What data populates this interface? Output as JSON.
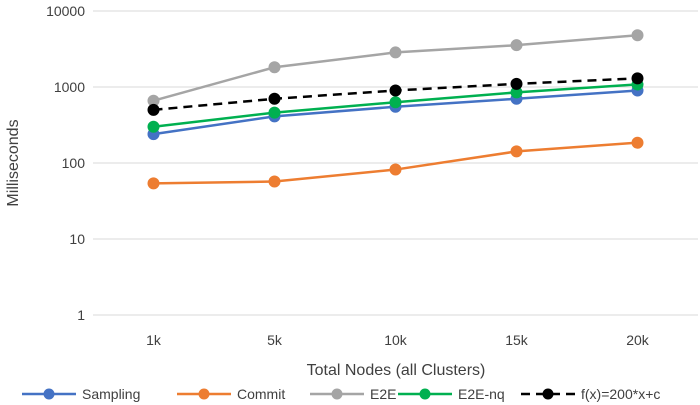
{
  "chart_data": {
    "type": "line",
    "title": "",
    "xlabel": "Total Nodes (all Clusters)",
    "ylabel": "Milliseconds",
    "y_scale": "log",
    "ylim": [
      1,
      10000
    ],
    "y_ticks": [
      "1",
      "10",
      "100",
      "1000",
      "10000"
    ],
    "y_tick_values": [
      1,
      10,
      100,
      1000,
      10000
    ],
    "categories": [
      "1k",
      "5k",
      "10k",
      "15k",
      "20k"
    ],
    "grid": "horizontal",
    "legend_position": "bottom",
    "series": [
      {
        "name": "Sampling",
        "color": "#4472C4",
        "dashed": false,
        "values": [
          240,
          410,
          550,
          700,
          900
        ]
      },
      {
        "name": "Commit",
        "color": "#ED7D31",
        "dashed": false,
        "values": [
          54,
          57,
          82,
          142,
          185
        ]
      },
      {
        "name": "E2E",
        "color": "#A5A5A5",
        "dashed": false,
        "values": [
          660,
          1820,
          2850,
          3550,
          4800
        ]
      },
      {
        "name": "E2E-nq",
        "color": "#00B050",
        "dashed": false,
        "values": [
          300,
          460,
          630,
          850,
          1080
        ]
      },
      {
        "name": "f(x)=200*x+c",
        "color": "#000000",
        "dashed": true,
        "values": [
          500,
          700,
          900,
          1100,
          1300
        ]
      }
    ]
  }
}
